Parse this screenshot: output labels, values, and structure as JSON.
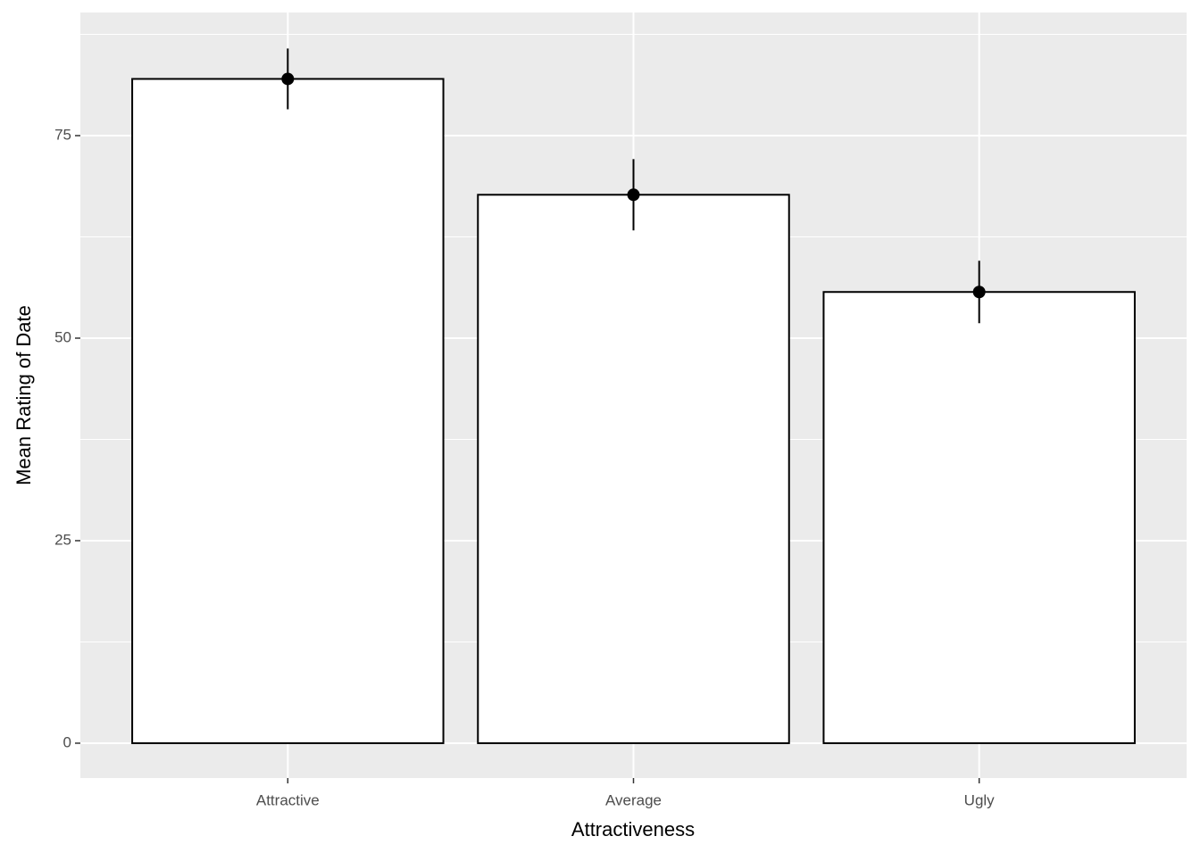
{
  "chart_data": {
    "type": "bar",
    "x_label": "Attractiveness",
    "y_label": "Mean Rating of Date",
    "categories": [
      "Attractive",
      "Average",
      "Ugly"
    ],
    "values": [
      82,
      67.7,
      55.7
    ],
    "errors": [
      3.75,
      4.4,
      3.85
    ],
    "fill": "#ffffff",
    "color": "#000000",
    "ylim": [
      -4.3,
      90.2
    ],
    "yticks": [
      0,
      25,
      50,
      75
    ],
    "minor_yticks": [
      12.5,
      37.5,
      62.5,
      87.5
    ],
    "grid": true
  }
}
